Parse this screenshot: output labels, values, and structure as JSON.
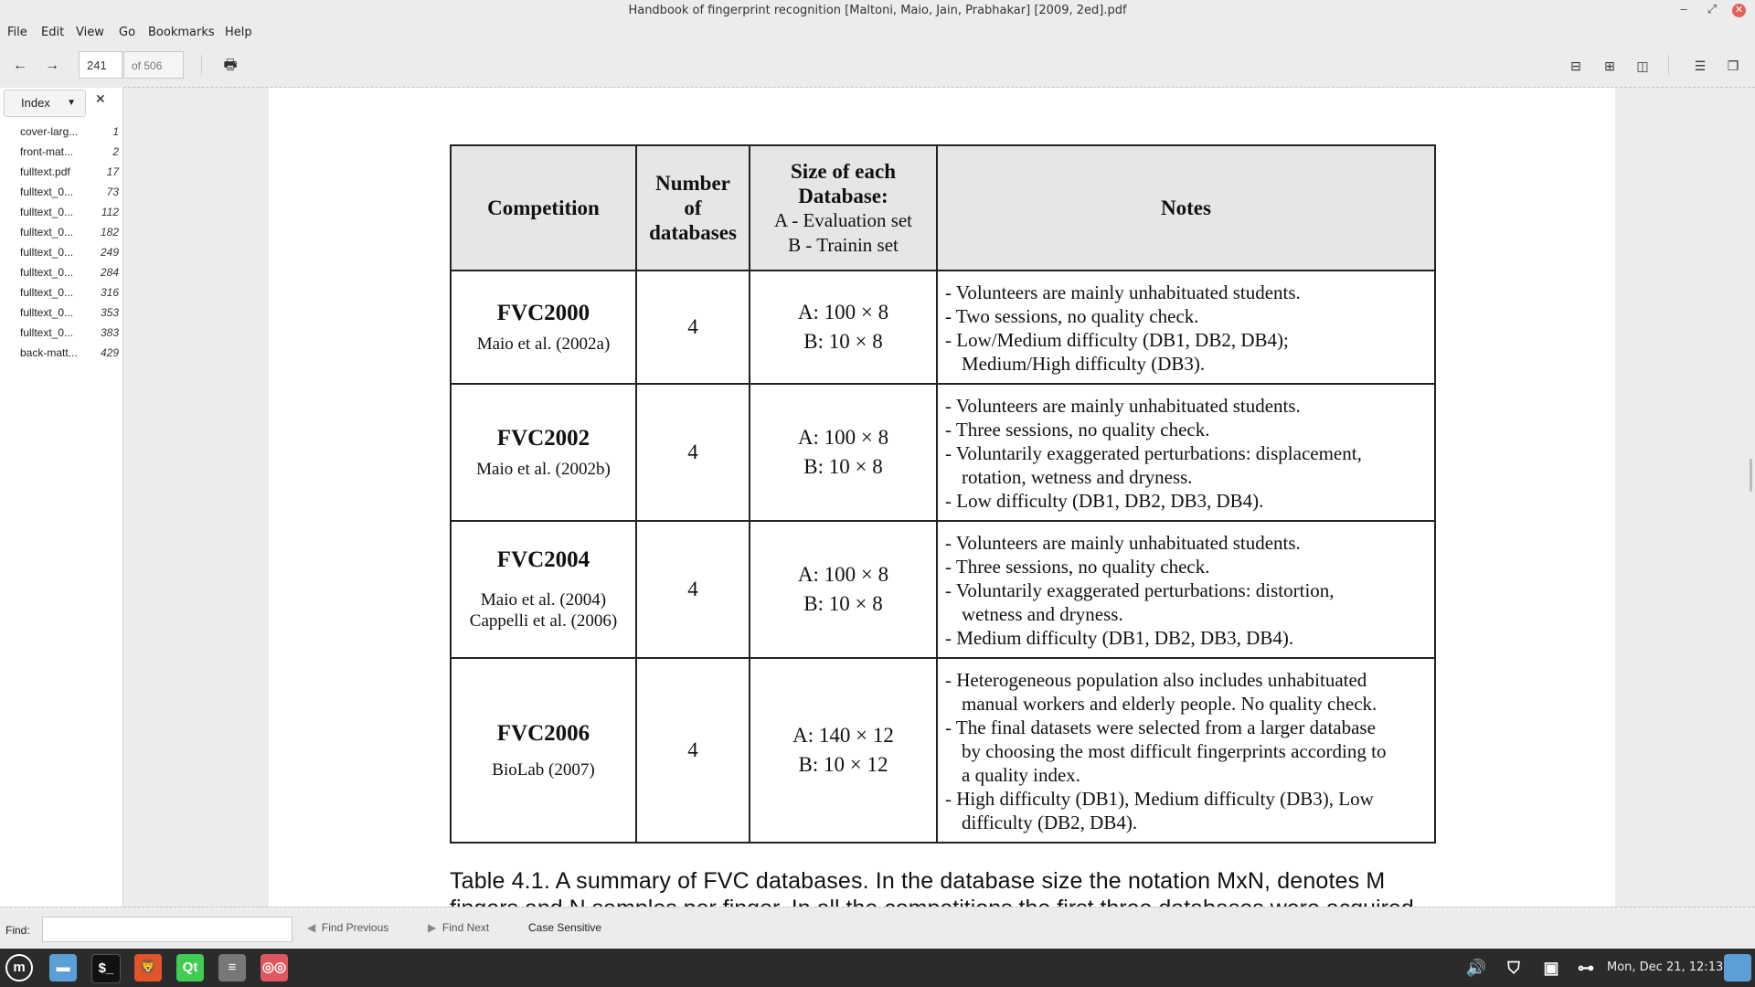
{
  "window": {
    "title": "Handbook of fingerprint recognition [Maltoni, Maio, Jain, Prabhakar]  [2009, 2ed].pdf"
  },
  "menu": [
    "File",
    "Edit",
    "View",
    "Go",
    "Bookmarks",
    "Help"
  ],
  "toolbar": {
    "page_number": "241",
    "page_total": "of 506"
  },
  "sidebar": {
    "mode": "Index",
    "items": [
      {
        "label": "cover-larg...",
        "page": "1"
      },
      {
        "label": "front-mat...",
        "page": "2"
      },
      {
        "label": "fulltext.pdf",
        "page": "17"
      },
      {
        "label": "fulltext_0...",
        "page": "73"
      },
      {
        "label": "fulltext_0...",
        "page": "112"
      },
      {
        "label": "fulltext_0...",
        "page": "182"
      },
      {
        "label": "fulltext_0...",
        "page": "249"
      },
      {
        "label": "fulltext_0...",
        "page": "284"
      },
      {
        "label": "fulltext_0...",
        "page": "316"
      },
      {
        "label": "fulltext_0...",
        "page": "353"
      },
      {
        "label": "fulltext_0...",
        "page": "383"
      },
      {
        "label": "back-matt...",
        "page": "429"
      }
    ]
  },
  "table": {
    "headers": {
      "competition": "Competition",
      "number": [
        "Number",
        "of",
        "databases"
      ],
      "size": [
        "Size of each",
        "Database:"
      ],
      "size_sub": [
        "A - Evaluation set",
        "B - Trainin set"
      ],
      "notes": "Notes"
    },
    "rows": [
      {
        "name": "FVC2000",
        "refs": [
          "Maio et al. (2002a)"
        ],
        "num": "4",
        "size": [
          "A: 100 × 8",
          "B: 10 × 8"
        ],
        "notes": [
          [
            "- Volunteers are mainly unhabituated students."
          ],
          [
            "- Two sessions, no quality check."
          ],
          [
            "- Low/Medium difficulty (DB1, DB2, DB4);",
            "Medium/High difficulty (DB3)."
          ]
        ]
      },
      {
        "name": "FVC2002",
        "refs": [
          "Maio et al. (2002b)"
        ],
        "num": "4",
        "size": [
          "A: 100 × 8",
          "B: 10 × 8"
        ],
        "notes": [
          [
            "- Volunteers are mainly unhabituated students."
          ],
          [
            "- Three sessions, no quality check."
          ],
          [
            "- Voluntarily exaggerated perturbations: displacement,",
            "rotation, wetness and dryness."
          ],
          [
            "- Low difficulty (DB1, DB2, DB3, DB4)."
          ]
        ]
      },
      {
        "name": "FVC2004",
        "refs": [
          "Maio et al. (2004)",
          "Cappelli et al. (2006)"
        ],
        "num": "4",
        "size": [
          "A: 100 × 8",
          "B: 10 × 8"
        ],
        "notes": [
          [
            "- Volunteers are mainly unhabituated students."
          ],
          [
            "- Three sessions, no quality check."
          ],
          [
            "- Voluntarily exaggerated perturbations: distortion,",
            "wetness and dryness."
          ],
          [
            "- Medium difficulty (DB1, DB2, DB3, DB4)."
          ]
        ]
      },
      {
        "name": "FVC2006",
        "refs": [
          "BioLab (2007)"
        ],
        "num": "4",
        "size": [
          "A: 140 × 12",
          "B: 10 × 12"
        ],
        "notes": [
          [
            "-  Heterogeneous population also includes unhabituated",
            "manual workers and elderly people. No quality check."
          ],
          [
            "- The final datasets were selected from a larger database",
            "by choosing the most difficult fingerprints according to",
            "a quality index."
          ],
          [
            "- High difficulty (DB1), Medium difficulty (DB3), Low",
            "difficulty (DB2, DB4)."
          ]
        ]
      }
    ]
  },
  "caption": "Table 4.1. A summary of FVC databases. In the database size the notation MxN, denotes M",
  "caption_line2": "fingers and N samples per finger. In all the competitions the first three databases were acquired",
  "findbar": {
    "label": "Find:",
    "find_previous": "Find Previous",
    "find_next": "Find Next",
    "case_sensitive": "Case Sensitive"
  },
  "taskbar": {
    "clock": "Mon, Dec 21, 12:13"
  }
}
